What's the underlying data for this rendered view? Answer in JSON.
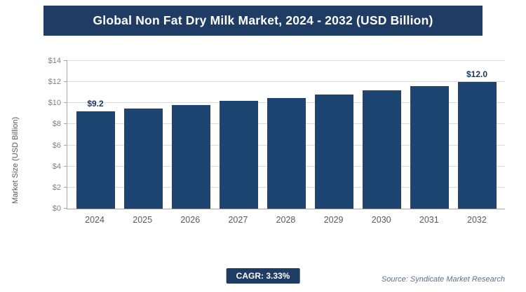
{
  "header": {
    "title": "Global Non Fat Dry Milk Market, 2024 - 2032 (USD Billion)"
  },
  "chart_data": {
    "type": "bar",
    "title": "Global Non Fat Dry Milk Market, 2024 - 2032 (USD Billion)",
    "categories": [
      "2024",
      "2025",
      "2026",
      "2027",
      "2028",
      "2029",
      "2030",
      "2031",
      "2032"
    ],
    "values": [
      9.2,
      9.5,
      9.8,
      10.2,
      10.5,
      10.8,
      11.2,
      11.6,
      12.0
    ],
    "xlabel": "",
    "ylabel": "Market Size (USD Billion)",
    "ylim": [
      0,
      14
    ],
    "ytick_step": 2,
    "ytick_prefix": "$",
    "grid": true,
    "legend": "none",
    "bar_labels": {
      "0": "$9.2",
      "8": "$12.0"
    }
  },
  "footer": {
    "cagr": "CAGR: 3.33%",
    "source": "Source: Syndicate Market Research"
  },
  "colors": {
    "accent": "#1d4571",
    "banner": "#1e3c64"
  }
}
